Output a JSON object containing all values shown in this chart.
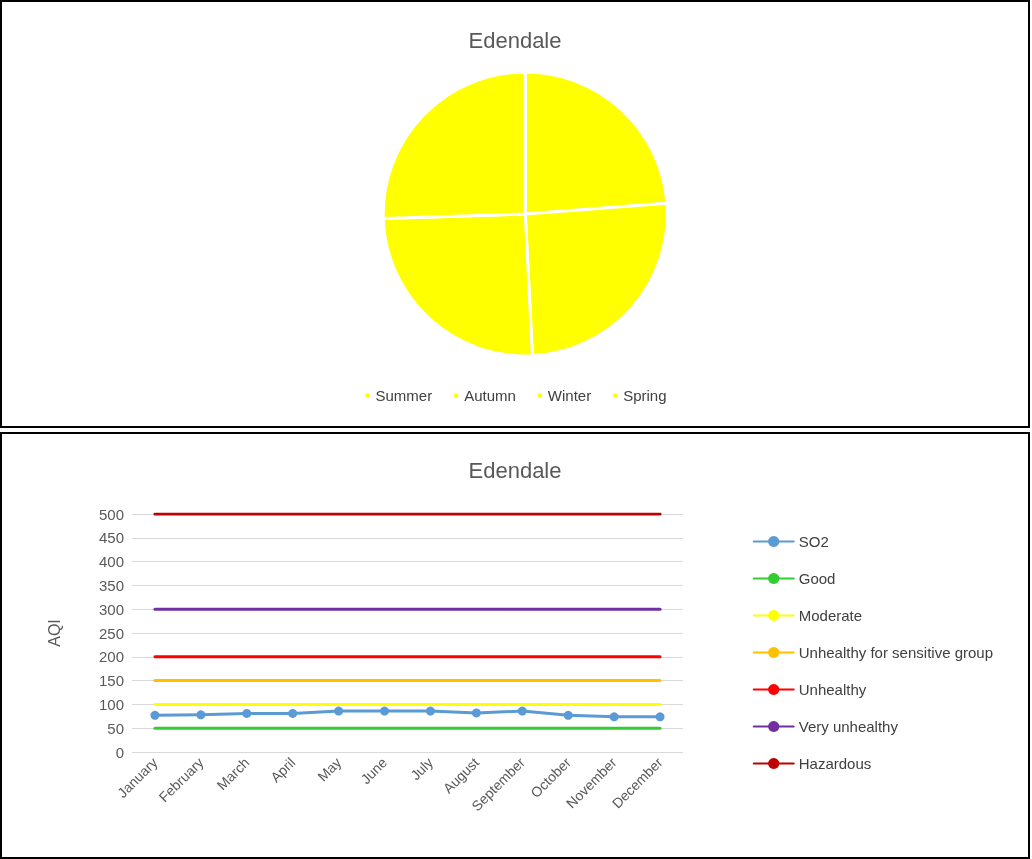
{
  "chart_data": [
    {
      "type": "pie",
      "title": "Edendale",
      "categories": [
        "Summer",
        "Autumn",
        "Winter",
        "Spring"
      ],
      "values": [
        23.8,
        25.4,
        25.3,
        25.5
      ],
      "colors": [
        "#ffff00",
        "#ffff00",
        "#ffff00",
        "#ffff00"
      ],
      "legend": "bottom"
    },
    {
      "type": "line",
      "title": "Edendale",
      "ylabel": "AQI",
      "categories": [
        "January",
        "February",
        "March",
        "April",
        "May",
        "June",
        "July",
        "August",
        "September",
        "October",
        "November",
        "December"
      ],
      "ylim": [
        0,
        500
      ],
      "yticks": [
        0,
        50,
        100,
        150,
        200,
        250,
        300,
        350,
        400,
        450,
        500
      ],
      "grid": "y",
      "legend": "right",
      "marker": "none",
      "line_style": "solid",
      "series": [
        {
          "name": "SO2",
          "color": "#5b9bd5",
          "marker": "circle",
          "values": [
            77,
            78,
            81,
            81,
            86,
            86,
            86,
            82,
            86,
            77,
            74,
            74
          ]
        },
        {
          "name": "Good",
          "color": "#33cc33",
          "values": [
            50,
            50,
            50,
            50,
            50,
            50,
            50,
            50,
            50,
            50,
            50,
            50
          ]
        },
        {
          "name": "Moderate",
          "color": "#ffff00",
          "values": [
            100,
            100,
            100,
            100,
            100,
            100,
            100,
            100,
            100,
            100,
            100,
            100
          ]
        },
        {
          "name": "Unhealthy for sensitive group",
          "color": "#ffc000",
          "values": [
            150,
            150,
            150,
            150,
            150,
            150,
            150,
            150,
            150,
            150,
            150,
            150
          ]
        },
        {
          "name": "Unhealthy",
          "color": "#ff0000",
          "values": [
            200,
            200,
            200,
            200,
            200,
            200,
            200,
            200,
            200,
            200,
            200,
            200
          ]
        },
        {
          "name": "Very unhealthy",
          "color": "#7030a0",
          "values": [
            300,
            300,
            300,
            300,
            300,
            300,
            300,
            300,
            300,
            300,
            300,
            300
          ]
        },
        {
          "name": "Hazardous",
          "color": "#c00000",
          "values": [
            500,
            500,
            500,
            500,
            500,
            500,
            500,
            500,
            500,
            500,
            500,
            500
          ]
        }
      ]
    }
  ]
}
